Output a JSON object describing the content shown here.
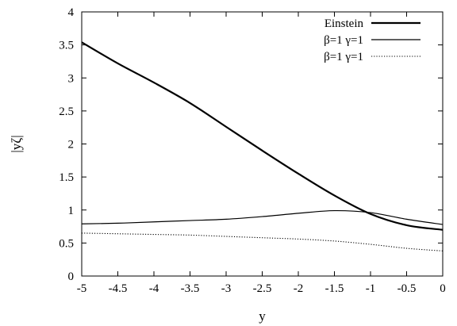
{
  "chart_data": {
    "type": "line",
    "xlabel": "y",
    "ylabel": "|yζ|",
    "xlim": [
      -5,
      0
    ],
    "ylim": [
      0,
      4
    ],
    "xticks": [
      -5,
      -4.5,
      -4,
      -3.5,
      -3,
      -2.5,
      -2,
      -1.5,
      -1,
      -0.5,
      0
    ],
    "xtick_labels": [
      "-5",
      "-4.5",
      "-4",
      "-3.5",
      "-3",
      "-2.5",
      "-2",
      "-1.5",
      "-1",
      "-0.5",
      "0"
    ],
    "yticks": [
      0,
      0.5,
      1,
      1.5,
      2,
      2.5,
      3,
      3.5,
      4
    ],
    "ytick_labels": [
      "0",
      "0.5",
      "1",
      "1.5",
      "2",
      "2.5",
      "3",
      "3.5",
      "4"
    ],
    "grid": false,
    "legend_position": "top-right",
    "series": [
      {
        "name": "Einstein",
        "style": "thick-solid",
        "color": "#000000",
        "x": [
          -5,
          -4.5,
          -4,
          -3.5,
          -3,
          -2.5,
          -2,
          -1.5,
          -1,
          -0.5,
          0
        ],
        "y": [
          3.54,
          3.22,
          2.93,
          2.62,
          2.26,
          1.9,
          1.55,
          1.22,
          0.94,
          0.77,
          0.7
        ]
      },
      {
        "name": "β=1 γ=1",
        "style": "solid",
        "color": "#000000",
        "x": [
          -5,
          -4.5,
          -4,
          -3.5,
          -3,
          -2.5,
          -2,
          -1.5,
          -1,
          -0.5,
          0
        ],
        "y": [
          0.79,
          0.8,
          0.82,
          0.84,
          0.86,
          0.9,
          0.95,
          0.99,
          0.96,
          0.86,
          0.78
        ]
      },
      {
        "name": "β=1 γ=1",
        "style": "dotted",
        "color": "#000000",
        "x": [
          -5,
          -4.5,
          -4,
          -3.5,
          -3,
          -2.5,
          -2,
          -1.5,
          -1,
          -0.5,
          0
        ],
        "y": [
          0.65,
          0.64,
          0.63,
          0.62,
          0.6,
          0.58,
          0.56,
          0.53,
          0.48,
          0.42,
          0.38
        ]
      }
    ]
  }
}
